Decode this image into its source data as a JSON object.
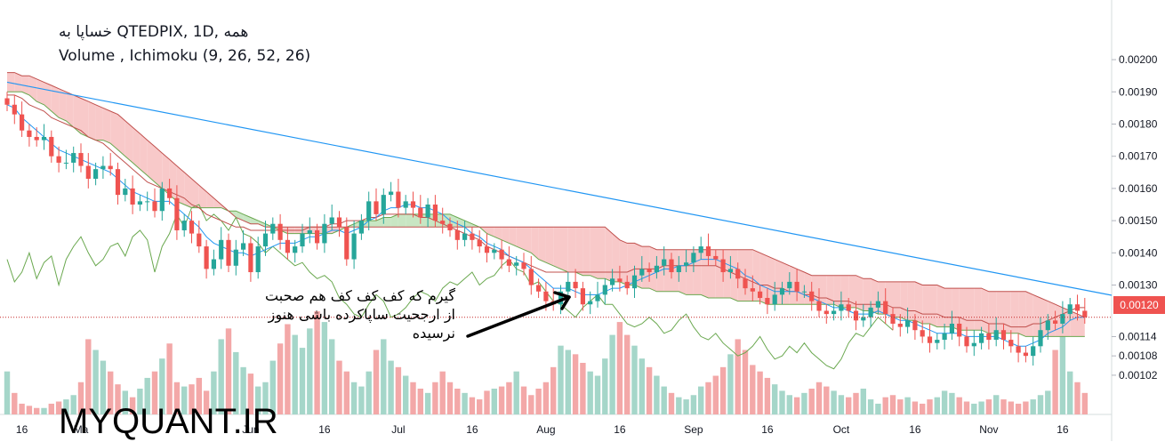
{
  "legend": {
    "line1": "خساپا به QTEDPIX, 1D, همه",
    "line2": "Volume , Ichimoku (9, 26, 52, 26)"
  },
  "annotation": {
    "lines": [
      "گیرم که کف کف کف هم صحبت",
      "از ارجحیت ساپاکرده باشی هنوز",
      "نرسیده"
    ]
  },
  "watermark": "MYQUANT.IR",
  "colors": {
    "up": "#26a69a",
    "down": "#ef5350",
    "vol_up": "#a5d6c9",
    "vol_down": "#f3a8a8",
    "tenkan": "#2196f3",
    "kijun": "#c0504d",
    "lagging": "#6aa84f",
    "cloud_bear": "#f8c9c9",
    "cloud_bull": "#c8e6c3",
    "trendline": "#2196f3",
    "price_line": "#c62828",
    "arrow": "#000000"
  },
  "chart_data": {
    "type": "candlestick",
    "ylim": [
      0.00097,
      0.00213
    ],
    "yticks": [
      "0.00200",
      "0.00190",
      "0.00180",
      "0.00170",
      "0.00160",
      "0.00150",
      "0.00140",
      "0.00130",
      "0.00114",
      "0.00108",
      "0.00102"
    ],
    "ytick_values": [
      0.002,
      0.0019,
      0.0018,
      0.0017,
      0.0016,
      0.0015,
      0.0014,
      0.0013,
      0.00114,
      0.00108,
      0.00102
    ],
    "xticks": [
      "16",
      "Ma",
      "Jun",
      "16",
      "Jul",
      "16",
      "Aug",
      "16",
      "Sep",
      "16",
      "Oct",
      "16",
      "Nov",
      "16"
    ],
    "xtick_index": [
      2,
      10,
      33,
      43,
      53,
      63,
      73,
      83,
      93,
      103,
      113,
      123,
      133,
      143
    ],
    "last_price": "0.00120",
    "last_price_value": 0.0012,
    "trendline": {
      "from": [
        0,
        0.00193
      ],
      "to": [
        147,
        0.00128
      ]
    },
    "close": [
      0.00186,
      0.00183,
      0.00178,
      0.00176,
      0.00175,
      0.00176,
      0.0017,
      0.00168,
      0.00168,
      0.00171,
      0.00167,
      0.00163,
      0.00166,
      0.00167,
      0.00166,
      0.00158,
      0.0016,
      0.00155,
      0.00156,
      0.00156,
      0.00153,
      0.0016,
      0.00157,
      0.00147,
      0.0015,
      0.00146,
      0.00142,
      0.00135,
      0.00138,
      0.00144,
      0.00136,
      0.00141,
      0.00143,
      0.00134,
      0.00142,
      0.00146,
      0.00149,
      0.00144,
      0.0014,
      0.00142,
      0.00146,
      0.00147,
      0.00143,
      0.00149,
      0.00151,
      0.00148,
      0.00138,
      0.00146,
      0.0015,
      0.00156,
      0.00152,
      0.00158,
      0.00159,
      0.00154,
      0.00156,
      0.00154,
      0.00151,
      0.00155,
      0.0015,
      0.00149,
      0.00147,
      0.00144,
      0.00146,
      0.00144,
      0.00142,
      0.0014,
      0.00141,
      0.00138,
      0.00136,
      0.00137,
      0.00135,
      0.0013,
      0.00128,
      0.00125,
      0.00124,
      0.00128,
      0.00131,
      0.00129,
      0.00124,
      0.00125,
      0.00127,
      0.0013,
      0.00132,
      0.00131,
      0.00129,
      0.00133,
      0.00135,
      0.00134,
      0.00136,
      0.00138,
      0.00134,
      0.00136,
      0.00137,
      0.0014,
      0.00142,
      0.00139,
      0.00138,
      0.00134,
      0.00135,
      0.00132,
      0.00129,
      0.00128,
      0.00126,
      0.00124,
      0.00127,
      0.00129,
      0.00131,
      0.00128,
      0.00128,
      0.00125,
      0.00122,
      0.00121,
      0.00122,
      0.00124,
      0.00122,
      0.00119,
      0.0012,
      0.00123,
      0.00125,
      0.00121,
      0.00118,
      0.00117,
      0.00119,
      0.00116,
      0.00114,
      0.00112,
      0.00113,
      0.00115,
      0.00118,
      0.00114,
      0.00111,
      0.00112,
      0.00115,
      0.00113,
      0.00116,
      0.00113,
      0.00111,
      0.00109,
      0.00108,
      0.00111,
      0.00116,
      0.00119,
      0.00118,
      0.00121,
      0.00124,
      0.00122,
      0.0012
    ],
    "tenkan": [
      0.00186,
      0.00185,
      0.00182,
      0.0018,
      0.00178,
      0.00176,
      0.00174,
      0.00172,
      0.00171,
      0.0017,
      0.00169,
      0.00168,
      0.00167,
      0.00166,
      0.00165,
      0.00163,
      0.00161,
      0.00159,
      0.00158,
      0.00157,
      0.00156,
      0.00156,
      0.00156,
      0.00154,
      0.00152,
      0.0015,
      0.00148,
      0.00145,
      0.00143,
      0.00142,
      0.00141,
      0.0014,
      0.0014,
      0.00139,
      0.0014,
      0.00141,
      0.00142,
      0.00143,
      0.00143,
      0.00143,
      0.00144,
      0.00145,
      0.00145,
      0.00146,
      0.00147,
      0.00147,
      0.00146,
      0.00147,
      0.00148,
      0.0015,
      0.00151,
      0.00153,
      0.00154,
      0.00154,
      0.00155,
      0.00155,
      0.00154,
      0.00154,
      0.00153,
      0.00152,
      0.0015,
      0.00149,
      0.00148,
      0.00146,
      0.00145,
      0.00143,
      0.00142,
      0.00141,
      0.00139,
      0.00138,
      0.00137,
      0.00135,
      0.00133,
      0.00131,
      0.00129,
      0.00129,
      0.00129,
      0.00128,
      0.00127,
      0.00127,
      0.00127,
      0.00128,
      0.00129,
      0.00129,
      0.0013,
      0.00131,
      0.00132,
      0.00133,
      0.00134,
      0.00135,
      0.00135,
      0.00136,
      0.00136,
      0.00137,
      0.00138,
      0.00138,
      0.00138,
      0.00137,
      0.00136,
      0.00135,
      0.00133,
      0.00132,
      0.0013,
      0.00129,
      0.00128,
      0.00128,
      0.00128,
      0.00128,
      0.00127,
      0.00126,
      0.00125,
      0.00124,
      0.00123,
      0.00123,
      0.00122,
      0.00121,
      0.00121,
      0.00121,
      0.00122,
      0.00121,
      0.0012,
      0.00119,
      0.00119,
      0.00118,
      0.00117,
      0.00116,
      0.00115,
      0.00115,
      0.00115,
      0.00115,
      0.00114,
      0.00114,
      0.00114,
      0.00114,
      0.00114,
      0.00113,
      0.00112,
      0.00111,
      0.00111,
      0.00112,
      0.00113,
      0.00115,
      0.00116,
      0.00117,
      0.00119,
      0.0012,
      0.0012
    ],
    "kijun": [
      0.00189,
      0.00189,
      0.00188,
      0.00186,
      0.00185,
      0.00184,
      0.00182,
      0.00181,
      0.0018,
      0.00179,
      0.00178,
      0.00176,
      0.00175,
      0.00174,
      0.00172,
      0.0017,
      0.00168,
      0.00166,
      0.00164,
      0.00162,
      0.00161,
      0.0016,
      0.00159,
      0.00158,
      0.00157,
      0.00155,
      0.00154,
      0.00152,
      0.00151,
      0.0015,
      0.00149,
      0.00148,
      0.00148,
      0.00147,
      0.00147,
      0.00147,
      0.00147,
      0.00147,
      0.00147,
      0.00147,
      0.00147,
      0.00148,
      0.00148,
      0.00148,
      0.00149,
      0.00149,
      0.0015,
      0.0015,
      0.0015,
      0.00151,
      0.00151,
      0.00152,
      0.00152,
      0.00152,
      0.00152,
      0.00152,
      0.00151,
      0.00151,
      0.0015,
      0.00149,
      0.00148,
      0.00147,
      0.00146,
      0.00145,
      0.00144,
      0.00142,
      0.00141,
      0.0014,
      0.00139,
      0.00138,
      0.00137,
      0.00136,
      0.00135,
      0.00134,
      0.00134,
      0.00134,
      0.00134,
      0.00134,
      0.00134,
      0.00134,
      0.00134,
      0.00134,
      0.00134,
      0.00134,
      0.00134,
      0.00135,
      0.00135,
      0.00135,
      0.00135,
      0.00136,
      0.00136,
      0.00136,
      0.00136,
      0.00136,
      0.00136,
      0.00136,
      0.00136,
      0.00135,
      0.00134,
      0.00133,
      0.00132,
      0.00131,
      0.0013,
      0.0013,
      0.00129,
      0.00129,
      0.00128,
      0.00128,
      0.00127,
      0.00127,
      0.00126,
      0.00126,
      0.00125,
      0.00125,
      0.00125,
      0.00124,
      0.00124,
      0.00124,
      0.00124,
      0.00124,
      0.00123,
      0.00123,
      0.00122,
      0.00122,
      0.00121,
      0.00121,
      0.00121,
      0.0012,
      0.0012,
      0.0012,
      0.00119,
      0.00119,
      0.00119,
      0.00118,
      0.00118,
      0.00118,
      0.00117,
      0.00117,
      0.00117,
      0.00118,
      0.00118,
      0.00119,
      0.0012,
      0.00121,
      0.00122,
      0.00123,
      0.00123
    ],
    "span_a": [
      0.0019,
      0.0019,
      0.0019,
      0.00189,
      0.00187,
      0.00186,
      0.00184,
      0.00182,
      0.00181,
      0.00179,
      0.00177,
      0.00176,
      0.00175,
      0.00175,
      0.00174,
      0.00172,
      0.0017,
      0.00168,
      0.00166,
      0.00164,
      0.00162,
      0.0016,
      0.00158,
      0.00156,
      0.00155,
      0.00154,
      0.00154,
      0.00154,
      0.00154,
      0.00154,
      0.00153,
      0.00153,
      0.00152,
      0.00151,
      0.0015,
      0.00149,
      0.00148,
      0.00147,
      0.00146,
      0.00146,
      0.00146,
      0.00146,
      0.00146,
      0.00146,
      0.00146,
      0.00147,
      0.00148,
      0.00149,
      0.0015,
      0.0015,
      0.0015,
      0.00151,
      0.00151,
      0.00152,
      0.00152,
      0.00152,
      0.00152,
      0.00152,
      0.00152,
      0.00152,
      0.00152,
      0.00151,
      0.0015,
      0.00149,
      0.00148,
      0.00146,
      0.00145,
      0.00144,
      0.00143,
      0.00142,
      0.00141,
      0.0014,
      0.00138,
      0.00137,
      0.00136,
      0.00135,
      0.00134,
      0.00134,
      0.00133,
      0.00133,
      0.00132,
      0.00132,
      0.00131,
      0.00131,
      0.0013,
      0.0013,
      0.00129,
      0.00129,
      0.00128,
      0.00128,
      0.00128,
      0.00128,
      0.00127,
      0.00127,
      0.00127,
      0.00126,
      0.00126,
      0.00126,
      0.00126,
      0.00125,
      0.00125,
      0.00125,
      0.00125,
      0.00124,
      0.00124,
      0.00124,
      0.00124,
      0.00124,
      0.00124,
      0.00124,
      0.00124,
      0.00124,
      0.00124,
      0.00123,
      0.00123,
      0.00123,
      0.00122,
      0.00122,
      0.00121,
      0.00121,
      0.0012,
      0.0012,
      0.00119,
      0.00119,
      0.00118,
      0.00118,
      0.00117,
      0.00117,
      0.00117,
      0.00116,
      0.00116,
      0.00116,
      0.00116,
      0.00115,
      0.00115,
      0.00115,
      0.00115,
      0.00115,
      0.00114,
      0.00114,
      0.00114,
      0.00114,
      0.00114,
      0.00114,
      0.00114,
      0.00114,
      0.00114
    ],
    "span_b": [
      0.00196,
      0.00196,
      0.00195,
      0.00195,
      0.00194,
      0.00193,
      0.00192,
      0.00191,
      0.0019,
      0.00189,
      0.00188,
      0.00187,
      0.00186,
      0.00185,
      0.00184,
      0.00183,
      0.00181,
      0.00179,
      0.00177,
      0.00175,
      0.00173,
      0.00171,
      0.00169,
      0.00167,
      0.00165,
      0.00163,
      0.00161,
      0.00159,
      0.00157,
      0.00155,
      0.00153,
      0.00151,
      0.0015,
      0.00149,
      0.00149,
      0.00148,
      0.00148,
      0.00148,
      0.00148,
      0.00148,
      0.00148,
      0.00148,
      0.00148,
      0.00148,
      0.00148,
      0.00148,
      0.00148,
      0.00148,
      0.00148,
      0.00148,
      0.00148,
      0.00148,
      0.00148,
      0.00148,
      0.00148,
      0.00148,
      0.00148,
      0.00148,
      0.00148,
      0.00148,
      0.00148,
      0.00148,
      0.00148,
      0.00148,
      0.00148,
      0.00148,
      0.00148,
      0.00148,
      0.00148,
      0.00148,
      0.00148,
      0.00148,
      0.00148,
      0.00148,
      0.00148,
      0.00148,
      0.00148,
      0.00148,
      0.00148,
      0.00148,
      0.00148,
      0.00148,
      0.00146,
      0.00144,
      0.00143,
      0.00143,
      0.00142,
      0.00142,
      0.00141,
      0.00141,
      0.00141,
      0.00141,
      0.00141,
      0.00141,
      0.00141,
      0.00141,
      0.00141,
      0.00141,
      0.00141,
      0.00141,
      0.00141,
      0.00141,
      0.0014,
      0.00139,
      0.00138,
      0.00137,
      0.00136,
      0.00135,
      0.00134,
      0.00133,
      0.00133,
      0.00133,
      0.00133,
      0.00133,
      0.00133,
      0.00133,
      0.00132,
      0.00132,
      0.00131,
      0.00131,
      0.00131,
      0.00131,
      0.00131,
      0.00131,
      0.0013,
      0.0013,
      0.0013,
      0.00129,
      0.00129,
      0.00129,
      0.00129,
      0.00129,
      0.00129,
      0.00128,
      0.00128,
      0.00128,
      0.00128,
      0.00128,
      0.00128,
      0.00127,
      0.00126,
      0.00125,
      0.00124,
      0.00123,
      0.00122,
      0.00121,
      0.0012
    ],
    "volume": [
      40,
      20,
      10,
      8,
      6,
      6,
      10,
      12,
      14,
      18,
      30,
      70,
      60,
      50,
      40,
      28,
      22,
      16,
      24,
      34,
      40,
      52,
      66,
      30,
      26,
      28,
      34,
      22,
      40,
      70,
      80,
      58,
      44,
      38,
      26,
      30,
      50,
      66,
      84,
      74,
      62,
      80,
      96,
      86,
      70,
      50,
      40,
      30,
      26,
      40,
      60,
      70,
      50,
      44,
      36,
      30,
      24,
      20,
      30,
      40,
      30,
      24,
      20,
      16,
      14,
      22,
      24,
      26,
      30,
      40,
      26,
      18,
      24,
      30,
      44,
      64,
      60,
      56,
      48,
      40,
      36,
      52,
      74,
      86,
      74,
      64,
      52,
      44,
      36,
      26,
      20,
      16,
      14,
      18,
      26,
      30,
      36,
      44,
      56,
      70,
      60,
      46,
      40,
      34,
      28,
      22,
      18,
      16,
      20,
      24,
      30,
      26,
      22,
      18,
      16,
      20,
      24,
      14,
      10,
      16,
      18,
      14,
      16,
      12,
      10,
      14,
      16,
      22,
      20,
      16,
      12,
      10,
      12,
      14,
      18,
      14,
      12,
      10,
      12,
      14,
      18,
      22,
      60,
      80,
      40,
      30,
      20
    ]
  }
}
